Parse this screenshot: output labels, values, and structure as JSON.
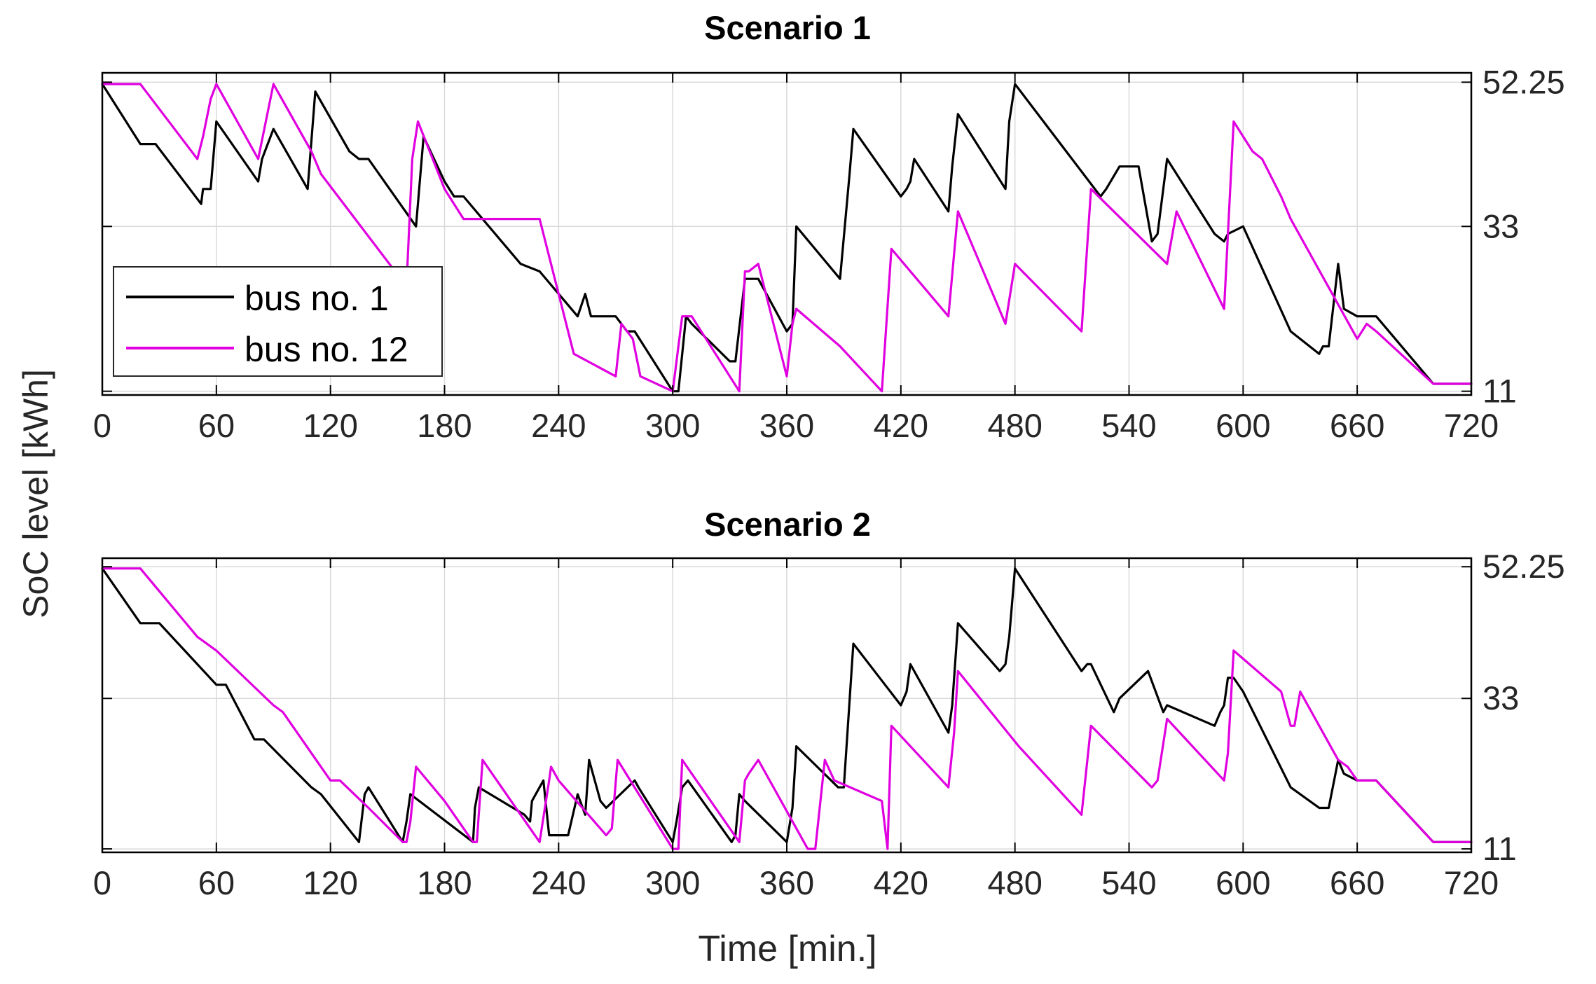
{
  "figure": {
    "ylabel": "SoC level [kWh]",
    "xlabel": "Time [min.]"
  },
  "legend": {
    "entries": [
      "bus no. 1",
      "bus no. 12"
    ]
  },
  "colors": {
    "bus1": "#000000",
    "bus12": "#e000e0",
    "grid": "#d9d9d9",
    "axis": "#000000"
  },
  "chart_data": [
    {
      "type": "line",
      "title": "Scenario 1",
      "xlabel": "Time [min.]",
      "ylabel": "SoC level [kWh]",
      "xlim": [
        0,
        720
      ],
      "ylim": [
        10.5,
        53.5
      ],
      "xticks": [
        0,
        60,
        120,
        180,
        240,
        300,
        360,
        420,
        480,
        540,
        600,
        660,
        720
      ],
      "yticks": [
        11,
        33,
        52.25
      ],
      "ytick_labels": [
        "11",
        "33",
        "52.25"
      ],
      "yaxis_location": "right",
      "grid": true,
      "legend_location": "west",
      "series": [
        {
          "name": "bus no. 1",
          "x": [
            0,
            20,
            28,
            52,
            53,
            57,
            60,
            82,
            84,
            90,
            108,
            112,
            130,
            135,
            140,
            165,
            169,
            180,
            185,
            190,
            220,
            230,
            250,
            254,
            257,
            270,
            276,
            280,
            300,
            303,
            307,
            310,
            330,
            333,
            338,
            345,
            360,
            363,
            365,
            388,
            393,
            395,
            420,
            423,
            425,
            427,
            445,
            447,
            450,
            475,
            477,
            480,
            525,
            528,
            535,
            545,
            552,
            555,
            560,
            585,
            590,
            592,
            600,
            625,
            640,
            642,
            645,
            650,
            653,
            660,
            670,
            700,
            720
          ],
          "y": [
            52,
            44,
            44,
            36,
            38,
            38,
            47,
            39,
            42,
            46,
            38,
            51,
            43,
            42,
            42,
            33,
            45,
            39,
            37,
            37,
            28,
            27,
            21,
            24,
            21,
            21,
            19,
            19,
            11,
            11,
            21,
            20,
            15,
            15,
            26,
            26,
            19,
            20,
            33,
            26,
            40,
            46,
            37,
            38,
            39,
            42,
            35,
            41,
            48,
            38,
            47,
            52,
            37,
            38,
            41,
            41,
            31,
            32,
            42,
            32,
            31,
            32,
            33,
            19,
            16,
            17,
            17,
            28,
            22,
            21,
            21,
            12,
            12
          ]
        },
        {
          "name": "bus no. 12",
          "x": [
            0,
            20,
            50,
            53,
            57,
            60,
            82,
            90,
            110,
            115,
            160,
            163,
            166,
            180,
            190,
            230,
            248,
            270,
            273,
            279,
            283,
            300,
            305,
            310,
            335,
            338,
            340,
            345,
            360,
            363,
            365,
            388,
            410,
            415,
            445,
            450,
            475,
            480,
            515,
            520,
            560,
            565,
            590,
            595,
            605,
            610,
            620,
            625,
            660,
            665,
            670,
            700,
            720
          ],
          "y": [
            52,
            52,
            42,
            45,
            50,
            52,
            42,
            52,
            43,
            40,
            25,
            42,
            47,
            38,
            34,
            34,
            16,
            13,
            20,
            18,
            13,
            11,
            21,
            21,
            11,
            27,
            27,
            28,
            13,
            20,
            22,
            17,
            11,
            30,
            21,
            35,
            20,
            28,
            19,
            38,
            28,
            35,
            22,
            47,
            43,
            42,
            37,
            34,
            18,
            20,
            19,
            12,
            12
          ]
        }
      ]
    },
    {
      "type": "line",
      "title": "Scenario 2",
      "xlabel": "Time [min.]",
      "ylabel": "SoC level [kWh]",
      "xlim": [
        0,
        720
      ],
      "ylim": [
        10.5,
        53.5
      ],
      "xticks": [
        0,
        60,
        120,
        180,
        240,
        300,
        360,
        420,
        480,
        540,
        600,
        660,
        720
      ],
      "yticks": [
        11,
        33,
        52.25
      ],
      "ytick_labels": [
        "11",
        "33",
        "52.25"
      ],
      "yaxis_location": "right",
      "grid": true,
      "series": [
        {
          "name": "bus no. 1",
          "x": [
            0,
            20,
            30,
            60,
            65,
            80,
            85,
            110,
            115,
            135,
            138,
            140,
            158,
            160,
            162,
            195,
            196,
            198,
            222,
            225,
            226,
            232,
            235,
            245,
            250,
            254,
            256,
            262,
            265,
            280,
            282,
            300,
            302,
            305,
            308,
            331,
            333,
            335,
            338,
            360,
            363,
            365,
            387,
            390,
            395,
            420,
            423,
            425,
            445,
            447,
            450,
            472,
            475,
            477,
            480,
            515,
            518,
            520,
            532,
            535,
            550,
            558,
            560,
            585,
            588,
            590,
            592,
            595,
            600,
            625,
            640,
            642,
            645,
            650,
            653,
            660,
            670,
            700,
            720
          ],
          "y": [
            52,
            44,
            44,
            35,
            35,
            27,
            27,
            20,
            19,
            12,
            19,
            20,
            12,
            15,
            19,
            12,
            17,
            20,
            16,
            15,
            18,
            21,
            13,
            13,
            19,
            16,
            24,
            18,
            17,
            21,
            20,
            12,
            15,
            20,
            21,
            12,
            13,
            19,
            18,
            12,
            17,
            26,
            20,
            20,
            41,
            32,
            34,
            38,
            28,
            32,
            44,
            37,
            38,
            42,
            52,
            37,
            38,
            38,
            31,
            33,
            37,
            31,
            32,
            29,
            31,
            32,
            36,
            36,
            34,
            20,
            17,
            17,
            17,
            24,
            22,
            21,
            21,
            12,
            12
          ]
        },
        {
          "name": "bus no. 12",
          "x": [
            0,
            20,
            50,
            60,
            90,
            95,
            115,
            120,
            122,
            125,
            140,
            158,
            160,
            162,
            165,
            180,
            195,
            197,
            200,
            230,
            235,
            236,
            240,
            265,
            268,
            271,
            300,
            303,
            305,
            335,
            338,
            340,
            345,
            371,
            375,
            380,
            385,
            410,
            413,
            415,
            445,
            448,
            450,
            482,
            515,
            520,
            552,
            555,
            560,
            590,
            592,
            595,
            620,
            625,
            627,
            630,
            650,
            655,
            660,
            670,
            700,
            720
          ],
          "y": [
            52,
            52,
            42,
            40,
            32,
            31,
            23,
            21,
            21,
            21,
            17,
            12,
            12,
            15,
            23,
            18,
            12,
            12,
            24,
            12,
            21,
            23,
            21,
            13,
            14,
            24,
            11,
            11,
            24,
            12,
            21,
            22,
            24,
            11,
            11,
            24,
            21,
            18,
            11,
            29,
            20,
            28,
            37,
            26,
            16,
            29,
            20,
            21,
            30,
            21,
            25,
            40,
            34,
            29,
            29,
            34,
            24,
            23,
            21,
            21,
            12,
            12
          ]
        }
      ]
    }
  ]
}
